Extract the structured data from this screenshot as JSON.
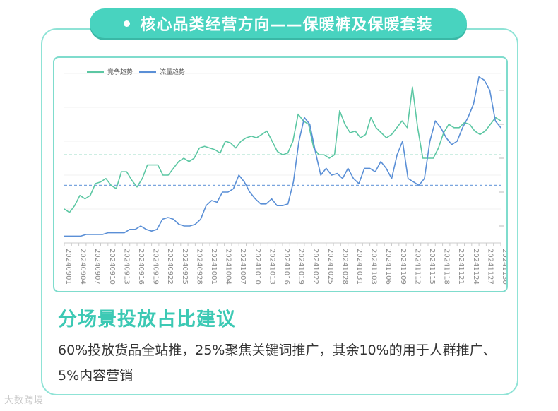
{
  "header": {
    "title": "核心品类经营方向——保暖裤及保暖套装"
  },
  "section": {
    "title": "分场景投放占比建议",
    "body": "60%投放货品全站推，25%聚焦关键词推广，其余10%的用于人群推广、5%内容营销"
  },
  "watermark": "大数跨境",
  "colors": {
    "accent": "#48d3bf",
    "competition": "#5cc7a3",
    "traffic": "#5a8fd6"
  },
  "chart_data": {
    "type": "line",
    "title": "",
    "xlabel": "",
    "ylabel": "",
    "legend_position": "top-left",
    "grid": true,
    "ylim": [
      0,
      100
    ],
    "x_ticks": [
      "20240901",
      "20240904",
      "20240907",
      "20240910",
      "20240913",
      "20240916",
      "20240919",
      "20240922",
      "20240925",
      "20240928",
      "20241001",
      "20241004",
      "20241007",
      "20241010",
      "20241013",
      "20241016",
      "20241019",
      "20241022",
      "20241025",
      "20241028",
      "20241031",
      "20241103",
      "20241106",
      "20241109",
      "20241112",
      "20241115",
      "20241118",
      "20241121",
      "20241124",
      "20241127",
      "20241130"
    ],
    "reference_lines": [
      {
        "series": "竞争趋势",
        "value": 52
      },
      {
        "series": "流量趋势",
        "value": 34
      }
    ],
    "series": [
      {
        "name": "竞争趋势",
        "values": [
          20,
          18,
          22,
          28,
          26,
          28,
          35,
          36,
          38,
          34,
          32,
          42,
          42,
          37,
          33,
          38,
          46,
          46,
          46,
          40,
          40,
          44,
          48,
          50,
          48,
          50,
          56,
          57,
          56,
          55,
          53,
          60,
          59,
          56,
          60,
          62,
          63,
          62,
          64,
          66,
          60,
          54,
          52,
          53,
          60,
          76,
          72,
          70,
          56,
          52,
          52,
          50,
          52,
          78,
          70,
          65,
          66,
          62,
          64,
          74,
          68,
          65,
          62,
          64,
          68,
          72,
          68,
          92,
          68,
          50,
          50,
          50,
          56,
          65,
          70,
          68,
          68,
          71,
          70,
          66,
          64,
          66,
          70,
          74,
          72
        ]
      },
      {
        "name": "流量趋势",
        "values": [
          4,
          4,
          4,
          4,
          5,
          5,
          5,
          5,
          6,
          6,
          6,
          6,
          8,
          8,
          10,
          8,
          7,
          8,
          14,
          15,
          14,
          11,
          10,
          10,
          11,
          14,
          22,
          25,
          24,
          30,
          30,
          32,
          40,
          36,
          30,
          26,
          23,
          23,
          26,
          22,
          22,
          23,
          36,
          60,
          74,
          70,
          54,
          40,
          44,
          40,
          41,
          38,
          44,
          38,
          35,
          44,
          44,
          42,
          48,
          44,
          38,
          52,
          60,
          38,
          36,
          34,
          38,
          60,
          72,
          68,
          62,
          58,
          60,
          68,
          74,
          82,
          98,
          96,
          90,
          72,
          68
        ]
      }
    ]
  }
}
